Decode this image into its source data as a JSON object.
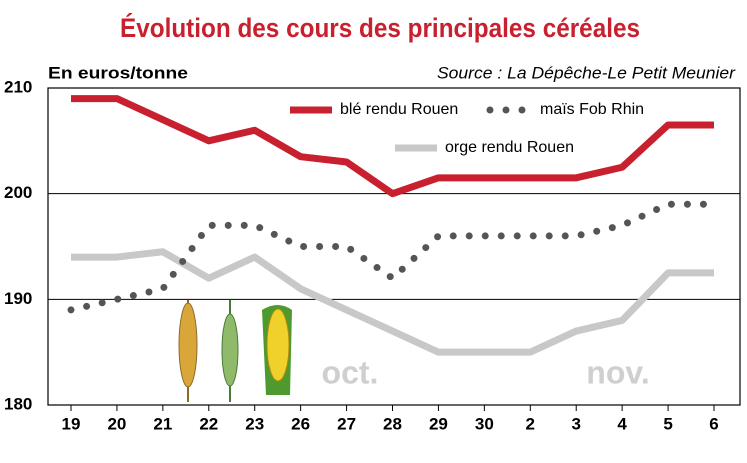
{
  "chart_data": {
    "type": "line",
    "title": "Évolution des cours des principales céréales",
    "y_label": "En euros/tonne",
    "source": "Source : La Dépêche-Le Petit Meunier",
    "categories": [
      "19",
      "20",
      "21",
      "22",
      "23",
      "26",
      "27",
      "28",
      "29",
      "30",
      "2",
      "3",
      "4",
      "5",
      "6"
    ],
    "series": [
      {
        "name": "blé rendu Rouen",
        "color": "#c8202f",
        "style": "solid",
        "values": [
          209,
          209,
          207,
          205,
          206,
          203.5,
          203,
          200,
          201.5,
          201.5,
          201.5,
          201.5,
          202.5,
          206.5,
          206.5
        ]
      },
      {
        "name": "maïs Fob Rhin",
        "color": "#555555",
        "style": "dotted",
        "values": [
          189,
          190,
          191,
          197,
          197,
          195,
          195,
          192,
          196,
          196,
          196,
          196,
          197,
          199,
          199
        ]
      },
      {
        "name": "orge rendu Rouen",
        "color": "#c8c8c8",
        "style": "solid",
        "values": [
          194,
          194,
          194.5,
          192,
          194,
          191,
          189,
          187,
          185,
          185,
          185,
          187,
          188,
          192.5,
          192.5
        ]
      }
    ],
    "annotations": [
      "oct.",
      "nov."
    ],
    "ylim": [
      180,
      210
    ],
    "yticks": [
      180,
      190,
      200,
      210
    ],
    "grid": true
  }
}
